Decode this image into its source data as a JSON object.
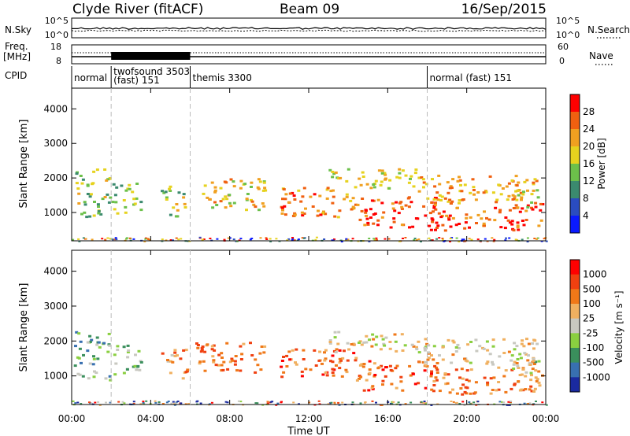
{
  "chart_data": {
    "type": "heatmap",
    "header": {
      "station": "Clyde River (fitACF)",
      "beam": "Beam 09",
      "date": "16/Sep/2015"
    },
    "noise": {
      "left_label": "N.Sky",
      "left_ticks": [
        "10^5",
        "10^0"
      ],
      "right_ticks": [
        "10^5",
        "10^0"
      ],
      "right_label": "N.Search"
    },
    "freq": {
      "left_label_line1": "Freq.",
      "left_label_line2": "[MHz]",
      "left_ticks": [
        "18",
        "8"
      ],
      "right_ticks": [
        "60",
        "0"
      ],
      "right_label": "Nave"
    },
    "cpid": {
      "label": "CPID",
      "modes": [
        {
          "start": 0.0,
          "end": 2.0,
          "lines": [
            "normal"
          ]
        },
        {
          "start": 2.0,
          "end": 6.0,
          "lines": [
            "twofsound 3503",
            "(fast) 151"
          ]
        },
        {
          "start": 6.0,
          "end": 18.0,
          "lines": [
            "themis 3300"
          ]
        },
        {
          "start": 18.0,
          "end": 24.0,
          "lines": [
            "normal (fast) 151"
          ]
        }
      ]
    },
    "x_axis": {
      "label": "Time UT",
      "range_hours": [
        0,
        24
      ],
      "tick_hours": [
        0,
        4,
        8,
        12,
        16,
        20,
        24
      ],
      "tick_labels": [
        "00:00",
        "04:00",
        "08:00",
        "12:00",
        "16:00",
        "20:00",
        "00:00"
      ]
    },
    "y_axis": {
      "label": "Slant Range [km]",
      "range_km": [
        180,
        4600
      ],
      "ticks": [
        1000,
        2000,
        3000,
        4000
      ]
    },
    "power_panel": {
      "colorbar_label": "Power [dB]",
      "colorbar_ticks": [
        "4",
        "8",
        "12",
        "16",
        "20",
        "24",
        "28"
      ],
      "colors": [
        "#0a1aff",
        "#2a4cc0",
        "#3b8a6e",
        "#6cc04a",
        "#e6d21e",
        "#f0a020",
        "#f06010",
        "#ff0000"
      ]
    },
    "velocity_panel": {
      "colorbar_label": "Velocity [m s⁻¹]",
      "colorbar_ticks": [
        "1000",
        "500",
        "100",
        "25",
        "-25",
        "-100",
        "-500",
        "-1000"
      ],
      "colors": [
        "#1a2aa0",
        "#3870b0",
        "#3a8f5c",
        "#8acf40",
        "#c8c8c0",
        "#f0b060",
        "#f07818",
        "#f04010",
        "#ff0000"
      ]
    },
    "scatter_regions": [
      {
        "t0": 0.1,
        "t1": 1.9,
        "r0": 900,
        "r1": 2300,
        "power": 3.5,
        "velocity": 2.5
      },
      {
        "t0": 2.0,
        "t1": 3.5,
        "r0": 1000,
        "r1": 1900,
        "power": 3.0,
        "velocity": 3.0
      },
      {
        "t0": 4.5,
        "t1": 5.8,
        "r0": 900,
        "r1": 1800,
        "power": 3.5,
        "velocity": 5.5
      },
      {
        "t0": 6.2,
        "t1": 9.8,
        "r0": 1100,
        "r1": 2000,
        "power": 4.5,
        "velocity": 6.0
      },
      {
        "t0": 10.5,
        "t1": 14.5,
        "r0": 900,
        "r1": 1800,
        "power": 5.5,
        "velocity": 6.3
      },
      {
        "t0": 13.0,
        "t1": 17.5,
        "r0": 1700,
        "r1": 2300,
        "power": 4.0,
        "velocity": 4.5
      },
      {
        "t0": 14.5,
        "t1": 18.5,
        "r0": 600,
        "r1": 1500,
        "power": 6.5,
        "velocity": 6.5
      },
      {
        "t0": 18.0,
        "t1": 23.8,
        "r0": 500,
        "r1": 1300,
        "power": 6.0,
        "velocity": 6.0
      },
      {
        "t0": 17.5,
        "t1": 23.5,
        "r0": 1300,
        "r1": 2100,
        "power": 5.0,
        "velocity": 4.5
      },
      {
        "t0": 22.0,
        "t1": 23.8,
        "r0": 1100,
        "r1": 1700,
        "power": 4.5,
        "velocity": 3.5
      }
    ]
  }
}
